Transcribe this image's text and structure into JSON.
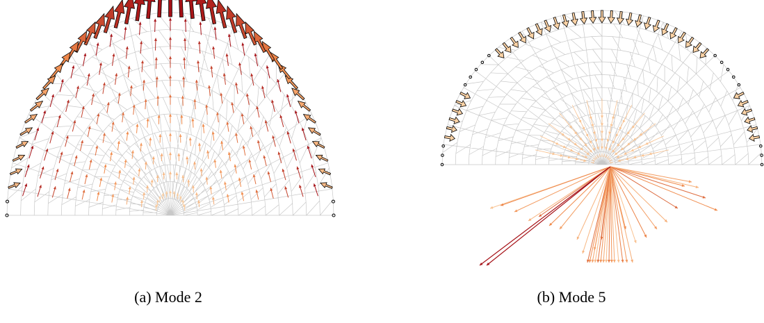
{
  "figure": {
    "captions": [
      {
        "label": "(a)",
        "text": "Mode 2"
      },
      {
        "label": "(b)",
        "text": "Mode 5"
      }
    ],
    "captions_full": [
      "(a) Mode 2",
      "(b) Mode 5"
    ]
  },
  "colors": {
    "mesh": "#c8c8c8",
    "boundary": "#000000",
    "arrow_low": "#fddbb0",
    "arrow_mid": "#f08a4b",
    "arrow_high": "#a50f15",
    "arrow_outline": "#000000"
  },
  "panels": [
    {
      "id": "mode-2",
      "shape": "semi-ellipse",
      "field": "upward-converging"
    },
    {
      "id": "mode-5",
      "shape": "semi-circle",
      "field": "downward-diverging"
    }
  ]
}
